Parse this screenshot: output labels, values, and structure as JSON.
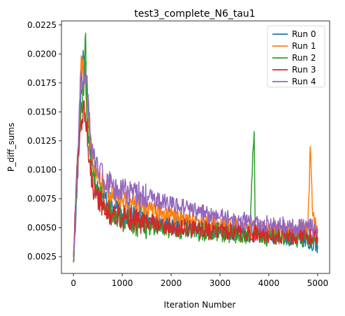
{
  "chart_data": {
    "type": "line",
    "title": "test3_complete_N6_tau1",
    "xlabel": "Iteration Number",
    "ylabel": "P_diff_sums",
    "xlim": [
      -245,
      5245
    ],
    "ylim": [
      0.00105,
      0.02285
    ],
    "xticks": [
      0,
      1000,
      2000,
      3000,
      4000,
      5000
    ],
    "xtick_labels": [
      "0",
      "1000",
      "2000",
      "3000",
      "4000",
      "5000"
    ],
    "yticks": [
      0.0025,
      0.005,
      0.0075,
      0.01,
      0.0125,
      0.015,
      0.0175,
      0.02,
      0.0225
    ],
    "ytick_labels": [
      "0.0025",
      "0.0050",
      "0.0075",
      "0.0100",
      "0.0125",
      "0.0150",
      "0.0175",
      "0.0200",
      "0.0225"
    ],
    "grid": false,
    "legend_position": "top-right",
    "series": [
      {
        "name": "Run 0",
        "color": "#1f77b4",
        "x": [
          0,
          50,
          100,
          150,
          200,
          250,
          300,
          350,
          400,
          500,
          600,
          700,
          800,
          1000,
          1200,
          1400,
          1600,
          1800,
          2000,
          2200,
          2400,
          2600,
          2800,
          3000,
          3200,
          3400,
          3600,
          3800,
          4000,
          4200,
          4400,
          4600,
          4800,
          5000
        ],
        "y": [
          0.002,
          0.006,
          0.011,
          0.0165,
          0.0203,
          0.0185,
          0.0155,
          0.012,
          0.01,
          0.0085,
          0.0078,
          0.0072,
          0.0068,
          0.0062,
          0.006,
          0.0058,
          0.0056,
          0.0054,
          0.0053,
          0.0052,
          0.005,
          0.0049,
          0.0049,
          0.0047,
          0.0047,
          0.0046,
          0.0045,
          0.0045,
          0.0044,
          0.0043,
          0.0043,
          0.0042,
          0.004,
          0.0035
        ]
      },
      {
        "name": "Run 1",
        "color": "#ff7f0e",
        "x": [
          0,
          50,
          100,
          150,
          200,
          250,
          300,
          350,
          400,
          500,
          600,
          700,
          800,
          1000,
          1200,
          1400,
          1600,
          1800,
          2000,
          2200,
          2400,
          2600,
          2800,
          3000,
          3200,
          3400,
          3600,
          3800,
          4000,
          4200,
          4400,
          4600,
          4800,
          4850,
          4900,
          5000
        ],
        "y": [
          0.002,
          0.007,
          0.012,
          0.0185,
          0.0195,
          0.017,
          0.0145,
          0.0125,
          0.0105,
          0.0095,
          0.0088,
          0.0082,
          0.0078,
          0.0072,
          0.007,
          0.0067,
          0.0065,
          0.0062,
          0.006,
          0.0058,
          0.0056,
          0.0055,
          0.0053,
          0.0052,
          0.0051,
          0.005,
          0.0049,
          0.0048,
          0.0047,
          0.0046,
          0.0046,
          0.0045,
          0.005,
          0.012,
          0.006,
          0.0045
        ]
      },
      {
        "name": "Run 2",
        "color": "#2ca02c",
        "x": [
          0,
          50,
          100,
          150,
          200,
          250,
          270,
          300,
          350,
          400,
          500,
          600,
          700,
          800,
          1000,
          1200,
          1400,
          1600,
          1800,
          2000,
          2200,
          2400,
          2600,
          2800,
          3000,
          3200,
          3400,
          3600,
          3700,
          3720,
          3800,
          4000,
          4200,
          4400,
          4600,
          4800,
          5000
        ],
        "y": [
          0.002,
          0.0075,
          0.0115,
          0.0145,
          0.0165,
          0.0218,
          0.015,
          0.013,
          0.011,
          0.0095,
          0.008,
          0.0072,
          0.0066,
          0.0062,
          0.0057,
          0.0054,
          0.0052,
          0.005,
          0.0049,
          0.0048,
          0.0048,
          0.0047,
          0.0046,
          0.0046,
          0.0045,
          0.0045,
          0.0044,
          0.0044,
          0.0133,
          0.005,
          0.0043,
          0.0042,
          0.0042,
          0.0041,
          0.0041,
          0.004,
          0.004
        ]
      },
      {
        "name": "Run 3",
        "color": "#d62728",
        "x": [
          0,
          50,
          100,
          150,
          200,
          250,
          300,
          350,
          400,
          500,
          600,
          700,
          800,
          1000,
          1200,
          1400,
          1600,
          1800,
          2000,
          2200,
          2400,
          2600,
          2800,
          3000,
          3200,
          3400,
          3600,
          3800,
          4000,
          4200,
          4400,
          4600,
          4800,
          5000
        ],
        "y": [
          0.0025,
          0.008,
          0.0115,
          0.014,
          0.0153,
          0.014,
          0.012,
          0.0095,
          0.0085,
          0.0075,
          0.007,
          0.0065,
          0.0062,
          0.0059,
          0.0057,
          0.0055,
          0.0053,
          0.0052,
          0.005,
          0.005,
          0.0049,
          0.0048,
          0.0047,
          0.0047,
          0.0046,
          0.0046,
          0.0045,
          0.0045,
          0.0044,
          0.0044,
          0.0043,
          0.0043,
          0.0042,
          0.0042
        ]
      },
      {
        "name": "Run 4",
        "color": "#9467bd",
        "x": [
          0,
          50,
          100,
          150,
          200,
          250,
          300,
          350,
          400,
          500,
          600,
          700,
          800,
          1000,
          1200,
          1400,
          1600,
          1800,
          2000,
          2200,
          2400,
          2600,
          2800,
          3000,
          3200,
          3400,
          3600,
          3800,
          4000,
          4200,
          4400,
          4600,
          4800,
          5000
        ],
        "y": [
          0.0025,
          0.0075,
          0.012,
          0.0185,
          0.0172,
          0.0185,
          0.0165,
          0.013,
          0.011,
          0.01,
          0.0095,
          0.009,
          0.0085,
          0.0082,
          0.008,
          0.0078,
          0.0075,
          0.0072,
          0.007,
          0.0068,
          0.0065,
          0.0063,
          0.0061,
          0.0059,
          0.0058,
          0.0056,
          0.0055,
          0.0054,
          0.0053,
          0.0052,
          0.0051,
          0.005,
          0.005,
          0.0049
        ]
      }
    ]
  }
}
